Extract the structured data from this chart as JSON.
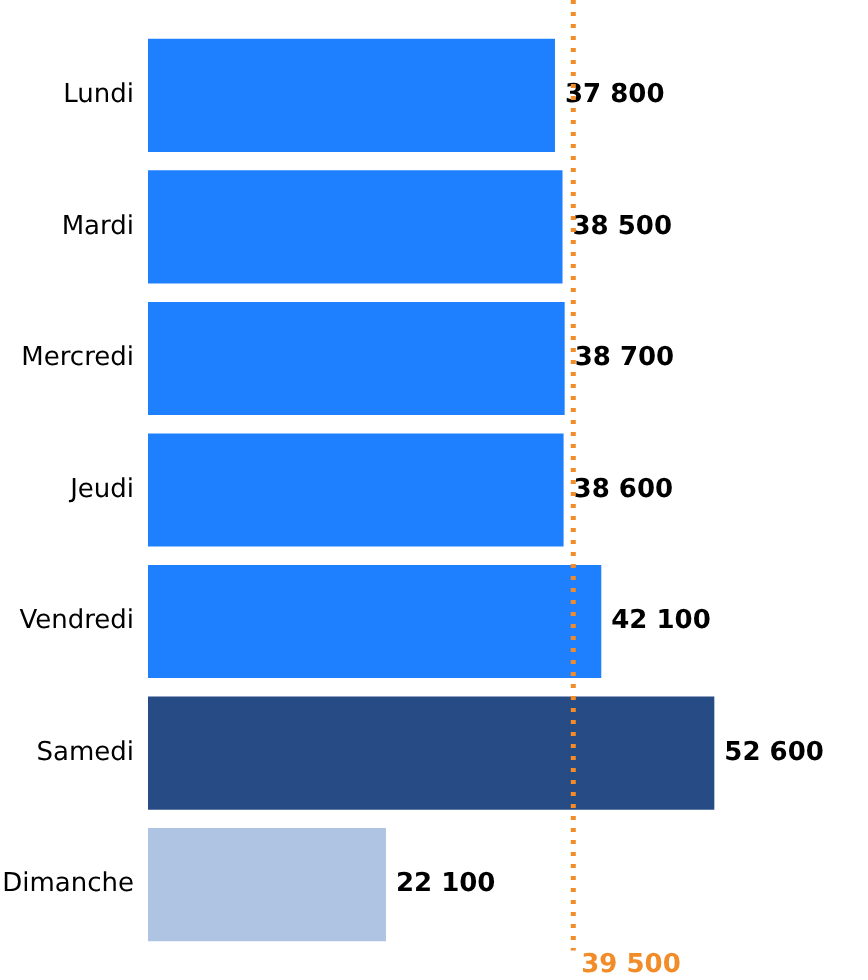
{
  "chart_data": {
    "type": "bar",
    "orientation": "horizontal",
    "categories": [
      "Lundi",
      "Mardi",
      "Mercredi",
      "Jeudi",
      "Vendredi",
      "Samedi",
      "Dimanche"
    ],
    "values": [
      37800,
      38500,
      38700,
      38600,
      42100,
      52600,
      22100
    ],
    "colors": [
      "#1f80ff",
      "#1f80ff",
      "#1f80ff",
      "#1f80ff",
      "#1f80ff",
      "#264b85",
      "#afc3e3"
    ],
    "value_labels": [
      "37 800",
      "38 500",
      "38 700",
      "38 600",
      "42 100",
      "52 600",
      "22 100"
    ],
    "tick_labels": "y",
    "grid": false,
    "legend": false,
    "ref_lines": [
      {
        "axis": "x",
        "value": 39500,
        "label": "39 500",
        "color": "#f28c28",
        "line_style": "dotted"
      }
    ]
  }
}
